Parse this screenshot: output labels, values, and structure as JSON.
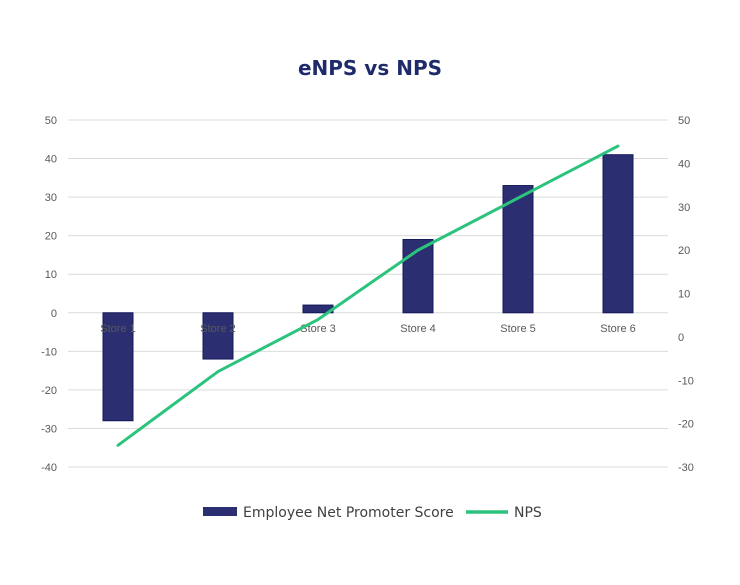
{
  "chart_data": {
    "type": "bar+line",
    "title": "eNPS vs NPS",
    "categories": [
      "Store 1",
      "Store 2",
      "Store 3",
      "Store 4",
      "Store 5",
      "Store 6"
    ],
    "series": [
      {
        "name": "Employee Net Promoter Score",
        "type": "bar",
        "axis": "left",
        "values": [
          -28,
          -12,
          2,
          19,
          33,
          41
        ]
      },
      {
        "name": "NPS",
        "type": "line",
        "axis": "right",
        "values": [
          -25,
          -8,
          4,
          20,
          32,
          44
        ]
      }
    ],
    "y_left": {
      "min": -40,
      "max": 50,
      "ticks": [
        "50",
        "40",
        "30",
        "20",
        "10",
        "0",
        "-10",
        "-20",
        "-30",
        "-40"
      ]
    },
    "y_right": {
      "min": -30,
      "max": 50,
      "ticks": [
        "50",
        "40",
        "30",
        "20",
        "10",
        "0",
        "-10",
        "-20",
        "-30"
      ]
    },
    "legend": [
      {
        "label": "Employee Net Promoter Score",
        "kind": "bar"
      },
      {
        "label": "NPS",
        "kind": "line"
      }
    ],
    "grid": true,
    "legend_position": "bottom",
    "colors": {
      "bar": "#2b2f72",
      "bar_edge": "#14185a",
      "line": "#2cc37d",
      "grid": "#dcdcdc",
      "title": "#1f2a6b"
    }
  }
}
